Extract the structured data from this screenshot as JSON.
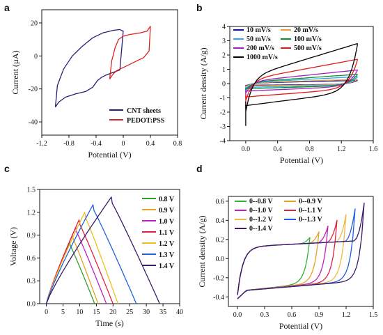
{
  "chart_data": [
    {
      "panel_label": "a",
      "type": "line",
      "xlabel": "Potential (V)",
      "ylabel": "Current (µA)",
      "xlim": [
        -1.2,
        0.8
      ],
      "ylim": [
        -48,
        28
      ],
      "xticks": [
        -1.2,
        -0.8,
        -0.4,
        0,
        0.4,
        0.8
      ],
      "xtick_labels": [
        "-1.2",
        "-0.8",
        "-0.4",
        "0",
        "0.4",
        "0.8"
      ],
      "yticks": [
        -40,
        -20,
        0,
        20
      ],
      "ytick_labels": [
        "-40",
        "-20",
        "0",
        "20"
      ],
      "legend_position": "bottom-right",
      "series": [
        {
          "name": "CNT sheets",
          "color": "#2e1a78",
          "points": [
            [
              -1.0,
              -31
            ],
            [
              -0.95,
              -28
            ],
            [
              -0.85,
              -25
            ],
            [
              -0.7,
              -23
            ],
            [
              -0.55,
              -21.5
            ],
            [
              -0.45,
              -19
            ],
            [
              -0.38,
              -15
            ],
            [
              -0.32,
              -13
            ],
            [
              -0.25,
              -11.5
            ],
            [
              -0.15,
              -10
            ],
            [
              -0.05,
              -8.5
            ],
            [
              0.0,
              15
            ],
            [
              -0.05,
              16
            ],
            [
              -0.15,
              15.5
            ],
            [
              -0.3,
              14
            ],
            [
              -0.45,
              11
            ],
            [
              -0.6,
              6
            ],
            [
              -0.75,
              0
            ],
            [
              -0.88,
              -8
            ],
            [
              -0.97,
              -18
            ],
            [
              -1.0,
              -31
            ]
          ]
        },
        {
          "name": "PEDOT:PSS",
          "color": "#e02020",
          "points": [
            [
              -0.2,
              -14
            ],
            [
              -0.15,
              -11
            ],
            [
              -0.1,
              -9
            ],
            [
              0.0,
              -7
            ],
            [
              0.1,
              -5
            ],
            [
              0.2,
              -3
            ],
            [
              0.3,
              -1
            ],
            [
              0.38,
              3
            ],
            [
              0.4,
              18
            ],
            [
              0.35,
              15
            ],
            [
              0.25,
              14
            ],
            [
              0.1,
              13
            ],
            [
              0.0,
              12
            ],
            [
              -0.07,
              10
            ],
            [
              -0.12,
              5
            ],
            [
              -0.17,
              -3
            ],
            [
              -0.2,
              -14
            ]
          ]
        }
      ]
    },
    {
      "panel_label": "b",
      "type": "line",
      "xlabel": "Potential (V)",
      "ylabel": "Current density (A/g)",
      "xlim": [
        -0.2,
        1.6
      ],
      "ylim": [
        -4,
        4
      ],
      "xticks": [
        0.0,
        0.4,
        0.8,
        1.2,
        1.6
      ],
      "xtick_labels": [
        "0.0",
        "0.4",
        "0.8",
        "1.2",
        "1.6"
      ],
      "yticks": [
        -4,
        -3,
        -2,
        -1,
        0,
        1,
        2,
        3,
        4
      ],
      "ytick_labels": [
        "-4",
        "-3",
        "-2",
        "-1",
        "0",
        "1",
        "2",
        "3",
        "4"
      ],
      "legend_position": "top-left",
      "series": [
        {
          "name": "10 mV/s",
          "color": "#1010b0",
          "amp": 0.22
        },
        {
          "name": "20 mV/s",
          "color": "#f0a030",
          "amp": 0.3
        },
        {
          "name": "50 mV/s",
          "color": "#30a8f0",
          "amp": 0.48
        },
        {
          "name": "100 mV/s",
          "color": "#109030",
          "amp": 0.65
        },
        {
          "name": "200 mV/s",
          "color": "#a020c0",
          "amp": 0.95
        },
        {
          "name": "500 mV/s",
          "color": "#e01818",
          "amp": 1.7
        },
        {
          "name": "1000 mV/s",
          "color": "#000000",
          "amp": 2.8
        }
      ]
    },
    {
      "panel_label": "c",
      "type": "line",
      "xlabel": "Time (s)",
      "ylabel": "Voltage (V)",
      "xlim": [
        -2,
        40
      ],
      "ylim": [
        0,
        1.5
      ],
      "xticks": [
        0,
        5,
        10,
        15,
        20,
        25,
        30,
        35,
        40
      ],
      "xtick_labels": [
        "0",
        "5",
        "10",
        "15",
        "20",
        "25",
        "30",
        "35",
        "40"
      ],
      "yticks": [
        0.0,
        0.3,
        0.6,
        0.9,
        1.2,
        1.5
      ],
      "ytick_labels": [
        "0.0",
        "0.3",
        "0.6",
        "0.9",
        "1.2",
        "1.5"
      ],
      "legend_position": "right",
      "series": [
        {
          "name": "0.8 V",
          "color": "#30a030",
          "vmax": 0.8,
          "tpeak": 7,
          "tend": 14.5
        },
        {
          "name": "0.9 V",
          "color": "#e8a020",
          "vmax": 0.9,
          "tpeak": 7.8,
          "tend": 15.5
        },
        {
          "name": "1.0 V",
          "color": "#c020c0",
          "vmax": 1.0,
          "tpeak": 8.8,
          "tend": 18
        },
        {
          "name": "1.1 V",
          "color": "#e02040",
          "vmax": 1.1,
          "tpeak": 9.8,
          "tend": 20
        },
        {
          "name": "1.2 V",
          "color": "#e8c020",
          "vmax": 1.2,
          "tpeak": 11.5,
          "tend": 21.5
        },
        {
          "name": "1.3 V",
          "color": "#2060e0",
          "vmax": 1.3,
          "tpeak": 14,
          "tend": 27
        },
        {
          "name": "1.4 V",
          "color": "#3a1a6a",
          "vmax": 1.4,
          "tpeak": 19.5,
          "tend": 34
        }
      ]
    },
    {
      "panel_label": "d",
      "type": "line",
      "xlabel": "Potential (V)",
      "ylabel": "Current density (A/g)",
      "xlim": [
        -0.1,
        1.5
      ],
      "ylim": [
        -0.5,
        0.65
      ],
      "xticks": [
        0.0,
        0.3,
        0.6,
        0.9,
        1.2,
        1.5
      ],
      "xtick_labels": [
        "0.0",
        "0.3",
        "0.6",
        "0.9",
        "1.2",
        "1.5"
      ],
      "yticks": [
        -0.4,
        -0.2,
        0.0,
        0.2,
        0.4,
        0.6
      ],
      "ytick_labels": [
        "-0.4",
        "-0.2",
        "0.0",
        "0.2",
        "0.4",
        "0.6"
      ],
      "legend_position": "top-left",
      "series": [
        {
          "name": "0--0.8 V",
          "color": "#30b030",
          "vmax": 0.8
        },
        {
          "name": "0--0.9 V",
          "color": "#e8a020",
          "vmax": 0.9
        },
        {
          "name": "0--1.0 V",
          "color": "#c020c0",
          "vmax": 1.0
        },
        {
          "name": "0--1.1 V",
          "color": "#e02040",
          "vmax": 1.1
        },
        {
          "name": "0--1.2 V",
          "color": "#f0b840",
          "vmax": 1.2
        },
        {
          "name": "0--1.3 V",
          "color": "#2060e0",
          "vmax": 1.3
        },
        {
          "name": "0--1.4 V",
          "color": "#3a1a6a",
          "vmax": 1.4
        }
      ]
    }
  ]
}
